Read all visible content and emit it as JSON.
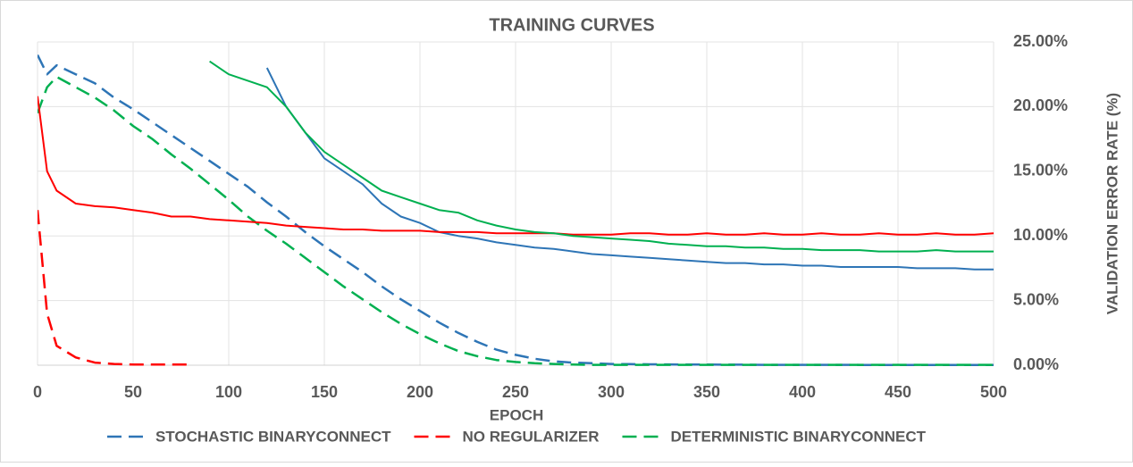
{
  "chart_data": {
    "type": "line",
    "title": "TRAINING  CURVES",
    "x_label": "EPOCH",
    "y_label": "VALIDATION ERROR RATE (%)",
    "x": [
      0,
      5,
      10,
      20,
      30,
      40,
      50,
      60,
      70,
      80,
      90,
      100,
      110,
      120,
      130,
      140,
      150,
      160,
      170,
      180,
      190,
      200,
      210,
      220,
      230,
      240,
      250,
      260,
      270,
      280,
      290,
      300,
      310,
      320,
      330,
      340,
      350,
      360,
      370,
      380,
      390,
      400,
      410,
      420,
      430,
      440,
      450,
      460,
      470,
      480,
      490,
      500
    ],
    "xlim": [
      0,
      500
    ],
    "xticks": [
      0,
      50,
      100,
      150,
      200,
      250,
      300,
      350,
      400,
      450,
      500
    ],
    "ylim": [
      0,
      25
    ],
    "yticks": [
      {
        "value": 0,
        "label": "0.00%"
      },
      {
        "value": 5,
        "label": "5.00%"
      },
      {
        "value": 10,
        "label": "10.00%"
      },
      {
        "value": 15,
        "label": "15.00%"
      },
      {
        "value": 20,
        "label": "20.00%"
      },
      {
        "value": 25,
        "label": "25.00%"
      }
    ],
    "grid": true,
    "y_axis_side": "right",
    "legend": "bottom",
    "series": [
      {
        "name": "STOCHASTIC BINARYCONNECT",
        "color": "#2e75b6",
        "dashed": true,
        "values": [
          24,
          22.5,
          23.2,
          22.5,
          21.8,
          20.7,
          19.8,
          18.8,
          17.8,
          16.8,
          15.8,
          14.8,
          13.8,
          12.6,
          11.5,
          10.3,
          9.2,
          8.2,
          7.2,
          6.1,
          5.1,
          4.2,
          3.3,
          2.5,
          1.8,
          1.2,
          0.8,
          0.5,
          0.3,
          0.2,
          0.15,
          0.1,
          0.08,
          0.07,
          0.06,
          0.05,
          0.05,
          0.04,
          0.04,
          0.03,
          0.03,
          0.03,
          0.03,
          0.03,
          0.02,
          0.02,
          0.02,
          0.02,
          0.02,
          0.02,
          0.02,
          0.02
        ]
      },
      {
        "name": "NO REGULARIZER",
        "color": "#ff0000",
        "dashed": true,
        "values": [
          12,
          4,
          1.5,
          0.6,
          0.2,
          0.1,
          0.05,
          0.05,
          0.05,
          0.05,
          null,
          null,
          null,
          null,
          null,
          null,
          null,
          null,
          null,
          null,
          null,
          null,
          null,
          null,
          null,
          null,
          null,
          null,
          null,
          null,
          null,
          null,
          null,
          null,
          null,
          null,
          null,
          null,
          null,
          null,
          null,
          null,
          null,
          null,
          null,
          null,
          null,
          null,
          null,
          null,
          null,
          null
        ]
      },
      {
        "name": "DETERMINISTIC BINARYCONNECT",
        "color": "#00b050",
        "dashed": true,
        "values": [
          19.5,
          21.5,
          22.3,
          21.5,
          20.7,
          19.7,
          18.5,
          17.5,
          16.3,
          15.2,
          14,
          12.8,
          11.5,
          10.4,
          9.4,
          8.3,
          7.2,
          6.1,
          5.1,
          4.1,
          3.2,
          2.4,
          1.7,
          1.1,
          0.7,
          0.4,
          0.25,
          0.15,
          0.1,
          0.05,
          0.03,
          0.03,
          0.03,
          0.03,
          0.03,
          0.03,
          0.03,
          0.03,
          0.03,
          0.03,
          0.03,
          0.03,
          0.03,
          0.03,
          0.03,
          0.03,
          0.03,
          0.03,
          0.03,
          0.03,
          0.03,
          0.03
        ]
      },
      {
        "color": "#2e75b6",
        "dashed": false,
        "values": [
          null,
          null,
          null,
          null,
          null,
          null,
          null,
          null,
          null,
          null,
          null,
          null,
          null,
          23,
          20,
          18,
          16,
          15,
          14,
          12.5,
          11.5,
          11,
          10.3,
          10,
          9.8,
          9.5,
          9.3,
          9.1,
          9,
          8.8,
          8.6,
          8.5,
          8.4,
          8.3,
          8.2,
          8.1,
          8.0,
          7.9,
          7.9,
          7.8,
          7.8,
          7.7,
          7.7,
          7.6,
          7.6,
          7.6,
          7.6,
          7.5,
          7.5,
          7.5,
          7.4,
          7.4
        ]
      },
      {
        "color": "#ff0000",
        "dashed": false,
        "values": [
          20.8,
          15,
          13.5,
          12.5,
          12.3,
          12.2,
          12,
          11.8,
          11.5,
          11.5,
          11.3,
          11.2,
          11.1,
          11,
          10.8,
          10.7,
          10.6,
          10.5,
          10.5,
          10.4,
          10.4,
          10.4,
          10.3,
          10.3,
          10.3,
          10.2,
          10.2,
          10.2,
          10.2,
          10.1,
          10.1,
          10.1,
          10.2,
          10.2,
          10.1,
          10.1,
          10.2,
          10.1,
          10.1,
          10.2,
          10.1,
          10.1,
          10.2,
          10.1,
          10.1,
          10.2,
          10.1,
          10.1,
          10.2,
          10.1,
          10.1,
          10.2
        ]
      },
      {
        "color": "#00b050",
        "dashed": false,
        "values": [
          null,
          null,
          null,
          null,
          null,
          null,
          null,
          null,
          null,
          null,
          23.5,
          22.5,
          22,
          21.5,
          20,
          18,
          16.5,
          15.5,
          14.5,
          13.5,
          13,
          12.5,
          12,
          11.8,
          11.2,
          10.8,
          10.5,
          10.3,
          10.2,
          10,
          9.9,
          9.8,
          9.7,
          9.6,
          9.4,
          9.3,
          9.2,
          9.2,
          9.1,
          9.1,
          9.0,
          9.0,
          8.9,
          8.9,
          8.9,
          8.8,
          8.8,
          8.8,
          8.9,
          8.8,
          8.8,
          8.8
        ]
      }
    ]
  }
}
